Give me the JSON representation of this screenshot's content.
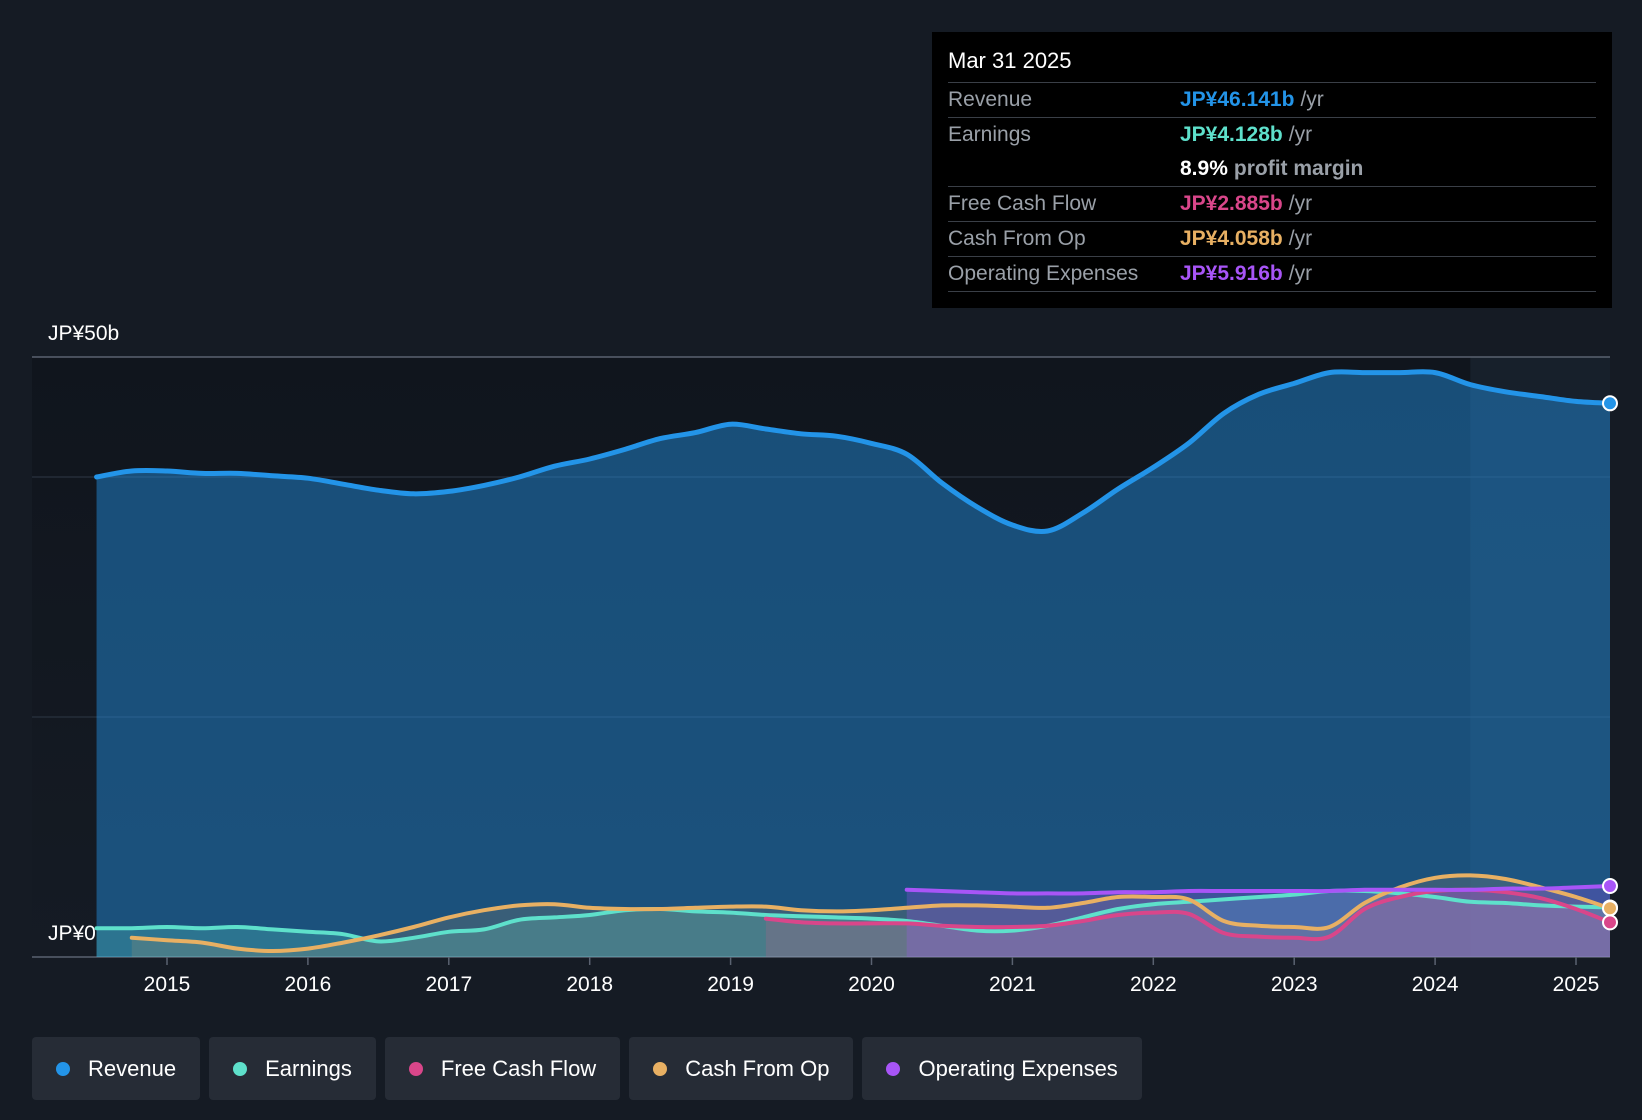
{
  "chart_data": {
    "type": "line",
    "y_top_label": "JP¥50b",
    "y_bottom_label": "JP¥0",
    "ylim": [
      0,
      50
    ],
    "xlim": [
      2014.05,
      2025.25
    ],
    "x_ticks": [
      "2015",
      "2016",
      "2017",
      "2018",
      "2019",
      "2020",
      "2021",
      "2022",
      "2023",
      "2024",
      "2025"
    ],
    "forecast_start": 2024.25,
    "grid": true,
    "series": [
      {
        "name": "Revenue",
        "color": "#2394e8",
        "fill": true,
        "x": [
          2014.5,
          2014.75,
          2015.0,
          2015.25,
          2015.5,
          2015.75,
          2016.0,
          2016.25,
          2016.5,
          2016.75,
          2017.0,
          2017.25,
          2017.5,
          2017.75,
          2018.0,
          2018.25,
          2018.5,
          2018.75,
          2019.0,
          2019.25,
          2019.5,
          2019.75,
          2020.0,
          2020.25,
          2020.5,
          2020.75,
          2021.0,
          2021.25,
          2021.5,
          2021.75,
          2022.0,
          2022.25,
          2022.5,
          2022.75,
          2023.0,
          2023.25,
          2023.5,
          2023.75,
          2024.0,
          2024.25,
          2024.5,
          2024.75,
          2025.0,
          2025.25
        ],
        "values": [
          40.0,
          40.5,
          40.5,
          40.3,
          40.3,
          40.1,
          39.9,
          39.4,
          38.9,
          38.6,
          38.8,
          39.3,
          40.0,
          40.9,
          41.5,
          42.3,
          43.2,
          43.7,
          44.4,
          44.0,
          43.6,
          43.4,
          42.8,
          41.9,
          39.5,
          37.5,
          36.0,
          35.5,
          37.0,
          39.0,
          40.8,
          42.8,
          45.3,
          46.9,
          47.8,
          48.7,
          48.7,
          48.7,
          48.7,
          47.7,
          47.1,
          46.7,
          46.3,
          46.141
        ]
      },
      {
        "name": "Earnings",
        "color": "#5ee0cb",
        "fill": true,
        "x": [
          2014.5,
          2014.75,
          2015.0,
          2015.25,
          2015.5,
          2015.75,
          2016.0,
          2016.25,
          2016.5,
          2016.75,
          2017.0,
          2017.25,
          2017.5,
          2017.75,
          2018.0,
          2018.25,
          2018.5,
          2018.75,
          2019.0,
          2019.25,
          2019.5,
          2019.75,
          2020.0,
          2020.25,
          2020.5,
          2020.75,
          2021.0,
          2021.25,
          2021.5,
          2021.75,
          2022.0,
          2022.25,
          2022.5,
          2022.75,
          2023.0,
          2023.25,
          2023.5,
          2023.75,
          2024.0,
          2024.25,
          2024.5,
          2024.75,
          2025.0,
          2025.25
        ],
        "values": [
          2.4,
          2.4,
          2.5,
          2.4,
          2.5,
          2.3,
          2.1,
          1.9,
          1.3,
          1.6,
          2.1,
          2.3,
          3.1,
          3.3,
          3.5,
          3.9,
          4.0,
          3.8,
          3.7,
          3.5,
          3.4,
          3.3,
          3.2,
          3.0,
          2.6,
          2.2,
          2.2,
          2.6,
          3.3,
          4.0,
          4.4,
          4.6,
          4.8,
          5.0,
          5.2,
          5.5,
          5.5,
          5.3,
          5.0,
          4.6,
          4.5,
          4.3,
          4.2,
          4.128
        ]
      },
      {
        "name": "Free Cash Flow",
        "color": "#d9468a",
        "fill": true,
        "x": [
          2019.25,
          2019.5,
          2019.75,
          2020.0,
          2020.25,
          2020.5,
          2020.75,
          2021.0,
          2021.25,
          2021.5,
          2021.75,
          2022.0,
          2022.25,
          2022.5,
          2022.75,
          2023.0,
          2023.25,
          2023.5,
          2023.75,
          2024.0,
          2024.25,
          2024.5,
          2024.75,
          2025.0,
          2025.25
        ],
        "values": [
          3.2,
          2.9,
          2.8,
          2.8,
          2.8,
          2.6,
          2.5,
          2.5,
          2.6,
          3.0,
          3.5,
          3.7,
          3.6,
          2.0,
          1.7,
          1.6,
          1.7,
          4.0,
          5.0,
          5.5,
          5.6,
          5.4,
          4.9,
          4.0,
          2.885
        ]
      },
      {
        "name": "Cash From Op",
        "color": "#e8b063",
        "fill": true,
        "x": [
          2014.75,
          2015.0,
          2015.25,
          2015.5,
          2015.75,
          2016.0,
          2016.25,
          2016.5,
          2016.75,
          2017.0,
          2017.25,
          2017.5,
          2017.75,
          2018.0,
          2018.25,
          2018.5,
          2018.75,
          2019.0,
          2019.25,
          2019.5,
          2019.75,
          2020.0,
          2020.25,
          2020.5,
          2020.75,
          2021.0,
          2021.25,
          2021.5,
          2021.75,
          2022.0,
          2022.25,
          2022.5,
          2022.75,
          2023.0,
          2023.25,
          2023.5,
          2023.75,
          2024.0,
          2024.25,
          2024.5,
          2024.75,
          2025.0,
          2025.25
        ],
        "values": [
          1.6,
          1.4,
          1.2,
          0.7,
          0.5,
          0.7,
          1.2,
          1.8,
          2.5,
          3.3,
          3.9,
          4.3,
          4.4,
          4.1,
          4.0,
          4.0,
          4.1,
          4.2,
          4.2,
          3.9,
          3.8,
          3.9,
          4.1,
          4.3,
          4.3,
          4.2,
          4.1,
          4.5,
          5.0,
          5.0,
          4.8,
          3.0,
          2.6,
          2.5,
          2.5,
          4.5,
          5.8,
          6.6,
          6.8,
          6.5,
          5.8,
          5.0,
          4.058
        ]
      },
      {
        "name": "Operating Expenses",
        "color": "#a855f7",
        "fill": true,
        "x": [
          2020.25,
          2020.5,
          2020.75,
          2021.0,
          2021.25,
          2021.5,
          2021.75,
          2022.0,
          2022.25,
          2022.5,
          2022.75,
          2023.0,
          2023.25,
          2023.5,
          2023.75,
          2024.0,
          2024.25,
          2024.5,
          2024.75,
          2025.0,
          2025.25
        ],
        "values": [
          5.6,
          5.5,
          5.4,
          5.3,
          5.3,
          5.3,
          5.4,
          5.4,
          5.5,
          5.5,
          5.5,
          5.5,
          5.5,
          5.6,
          5.6,
          5.6,
          5.6,
          5.7,
          5.7,
          5.8,
          5.916
        ]
      }
    ]
  },
  "tooltip": {
    "date": "Mar 31 2025",
    "rows": {
      "revenue": {
        "label": "Revenue",
        "value": "JP¥46.141b",
        "unit": "/yr",
        "color": "#2394e8"
      },
      "earnings": {
        "label": "Earnings",
        "value": "JP¥4.128b",
        "unit": "/yr",
        "color": "#5ee0cb"
      },
      "margin": {
        "value": "8.9%",
        "text": "profit margin"
      },
      "fcf": {
        "label": "Free Cash Flow",
        "value": "JP¥2.885b",
        "unit": "/yr",
        "color": "#d9468a"
      },
      "cfo": {
        "label": "Cash From Op",
        "value": "JP¥4.058b",
        "unit": "/yr",
        "color": "#e8b063"
      },
      "opex": {
        "label": "Operating Expenses",
        "value": "JP¥5.916b",
        "unit": "/yr",
        "color": "#a855f7"
      }
    }
  },
  "legend": [
    {
      "label": "Revenue",
      "color": "#2394e8"
    },
    {
      "label": "Earnings",
      "color": "#5ee0cb"
    },
    {
      "label": "Free Cash Flow",
      "color": "#d9468a"
    },
    {
      "label": "Cash From Op",
      "color": "#e8b063"
    },
    {
      "label": "Operating Expenses",
      "color": "#a855f7"
    }
  ]
}
